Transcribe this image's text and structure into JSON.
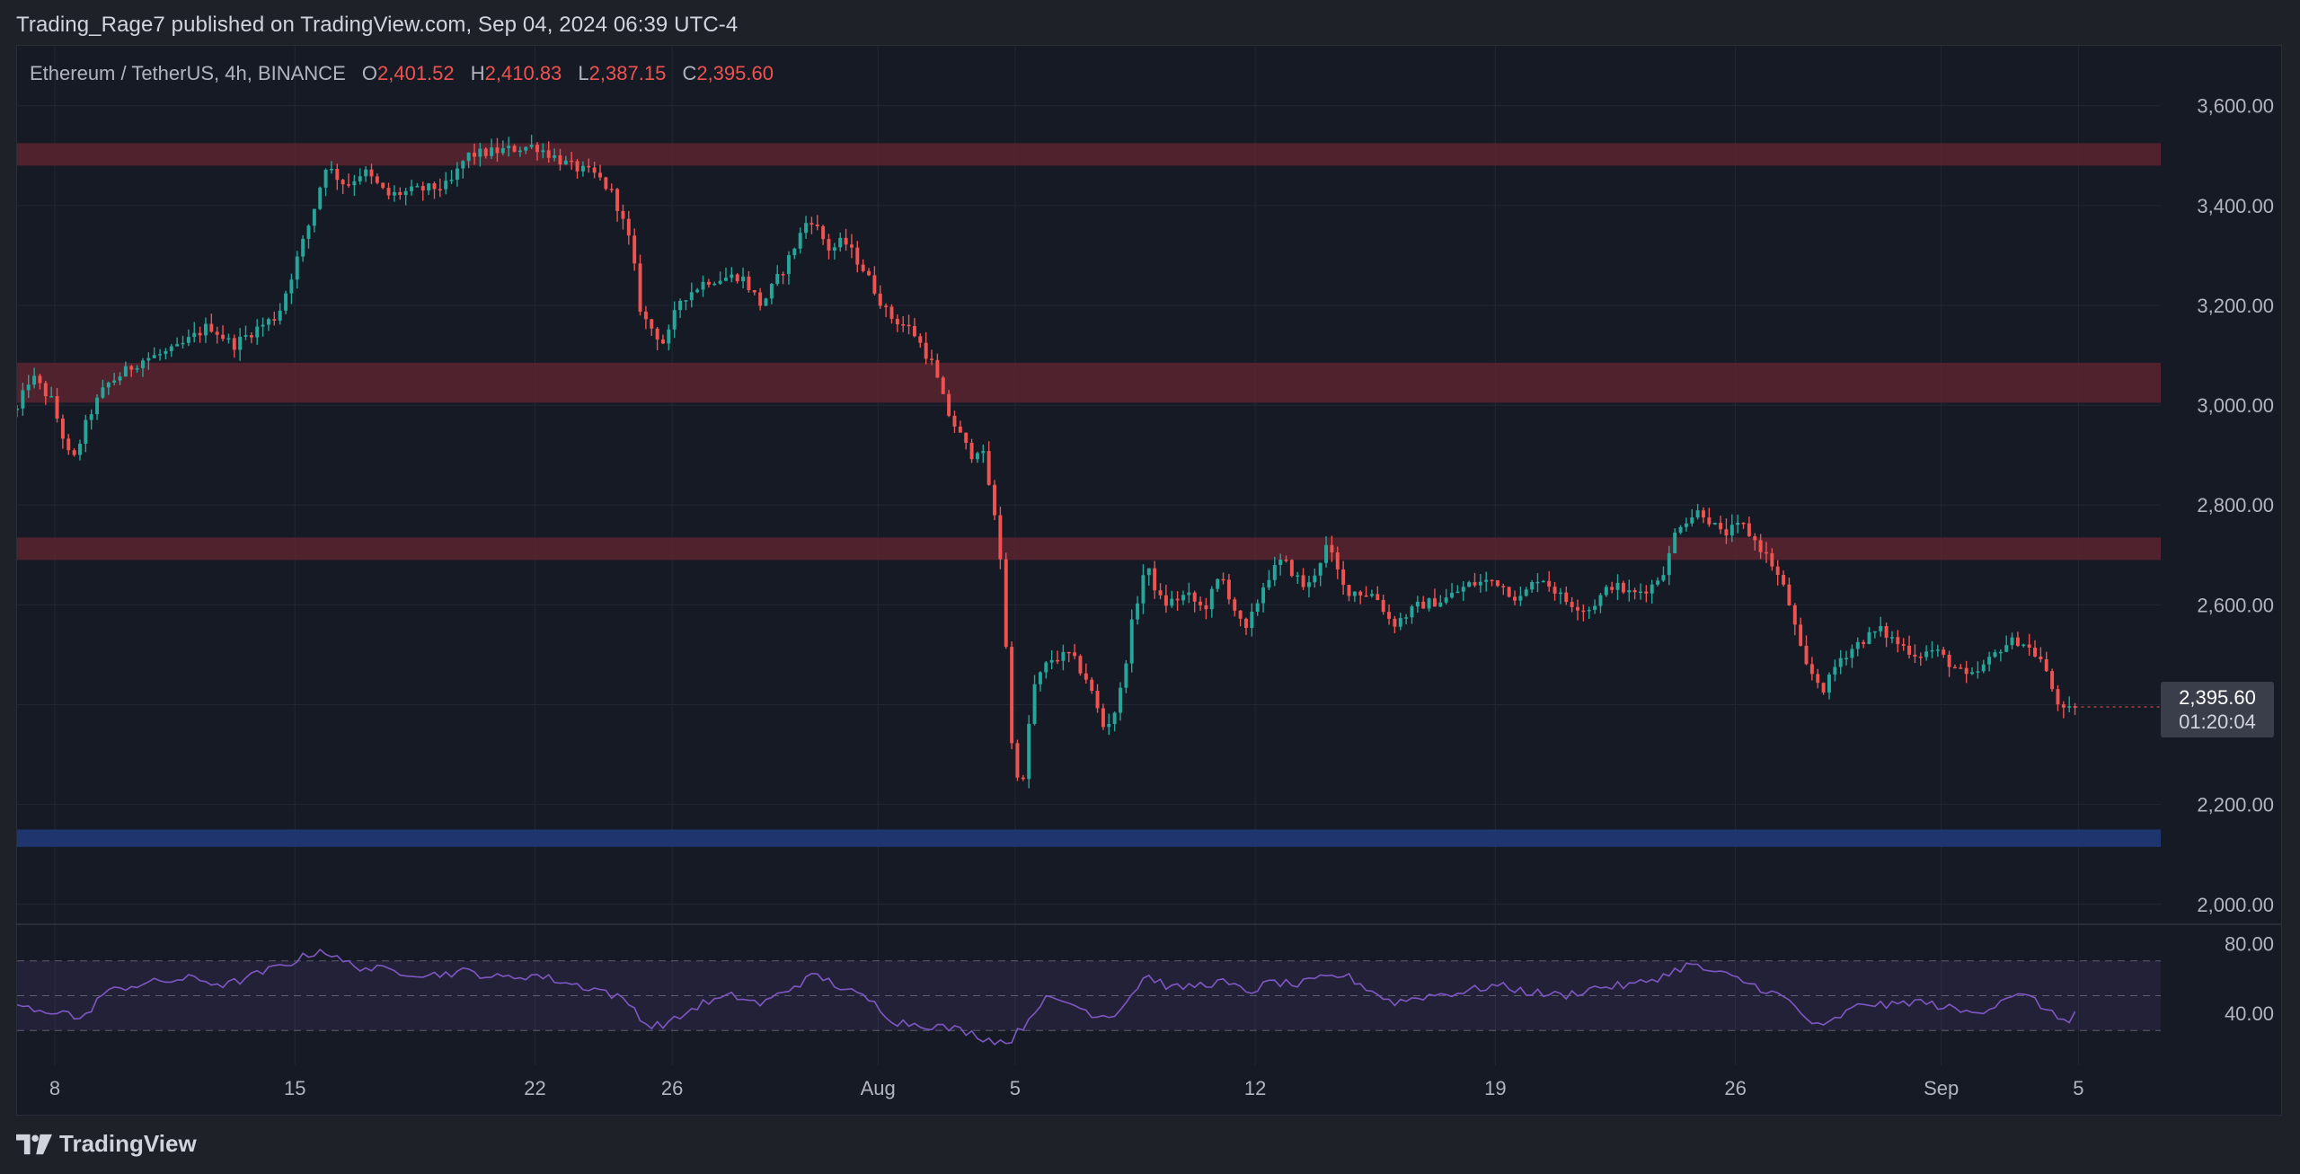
{
  "header": {
    "publisher": "Trading_Rage7 published on TradingView.com, Sep 04, 2024 06:39 UTC-4"
  },
  "legend": {
    "symbol": "Ethereum / TetherUS, 4h, BINANCE",
    "o_label": "O",
    "o_value": "2,401.52",
    "h_label": "H",
    "h_value": "2,410.83",
    "l_label": "L",
    "l_value": "2,387.15",
    "c_label": "C",
    "c_value": "2,395.60"
  },
  "price_badge": {
    "price": "2,395.60",
    "countdown": "01:20:04"
  },
  "footer": {
    "brand": "TradingView"
  },
  "colors": {
    "up": "#26a69a",
    "down": "#ef5350",
    "resistance": "#5a2530",
    "support": "#1f3a75",
    "rsi": "#7e57c2",
    "axis_text": "#b2b5be",
    "grid": "#232733"
  },
  "chart_data": [
    {
      "type": "candlestick",
      "title": "Ethereum / TetherUS, 4h, BINANCE",
      "y_axis_ticks": [
        "3,600.00",
        "3,400.00",
        "3,200.00",
        "3,000.00",
        "2,800.00",
        "2,600.00",
        "2,400.00",
        "2,200.00",
        "2,000.00"
      ],
      "y_tick_values": [
        3600,
        3400,
        3200,
        3000,
        2800,
        2600,
        2400,
        2200,
        2000
      ],
      "ylim": [
        1960,
        3720
      ],
      "x_axis_ticks": [
        "8",
        "15",
        "22",
        "26",
        "Aug",
        "5",
        "12",
        "19",
        "26",
        "Sep",
        "5"
      ],
      "x_tick_days": [
        7,
        14,
        21,
        25,
        31,
        35,
        42,
        49,
        56,
        62,
        66
      ],
      "xlim_days": [
        5.9,
        68.4
      ],
      "zones": [
        {
          "kind": "resistance",
          "low": 3480,
          "high": 3525
        },
        {
          "kind": "resistance",
          "low": 3005,
          "high": 3085
        },
        {
          "kind": "resistance",
          "low": 2690,
          "high": 2735
        },
        {
          "kind": "support",
          "low": 2115,
          "high": 2150
        }
      ],
      "price_path": [
        [
          5.9,
          2990
        ],
        [
          6.3,
          3060
        ],
        [
          6.9,
          3010
        ],
        [
          7.5,
          2880
        ],
        [
          8.0,
          2980
        ],
        [
          8.5,
          3040
        ],
        [
          9.5,
          3090
        ],
        [
          10.5,
          3110
        ],
        [
          11.5,
          3160
        ],
        [
          12.2,
          3120
        ],
        [
          12.8,
          3150
        ],
        [
          13.5,
          3180
        ],
        [
          14.0,
          3280
        ],
        [
          14.5,
          3380
        ],
        [
          14.9,
          3480
        ],
        [
          15.5,
          3440
        ],
        [
          16.0,
          3470
        ],
        [
          16.7,
          3420
        ],
        [
          17.5,
          3430
        ],
        [
          18.5,
          3440
        ],
        [
          19.0,
          3500
        ],
        [
          20.0,
          3510
        ],
        [
          21.0,
          3520
        ],
        [
          21.5,
          3500
        ],
        [
          22.0,
          3480
        ],
        [
          22.8,
          3460
        ],
        [
          23.3,
          3420
        ],
        [
          23.8,
          3320
        ],
        [
          24.1,
          3180
        ],
        [
          24.8,
          3120
        ],
        [
          25.2,
          3210
        ],
        [
          26.0,
          3250
        ],
        [
          27.0,
          3260
        ],
        [
          27.6,
          3200
        ],
        [
          28.3,
          3280
        ],
        [
          29.0,
          3380
        ],
        [
          29.6,
          3310
        ],
        [
          30.0,
          3330
        ],
        [
          30.6,
          3270
        ],
        [
          31.3,
          3180
        ],
        [
          32.0,
          3150
        ],
        [
          32.6,
          3080
        ],
        [
          33.0,
          2990
        ],
        [
          33.7,
          2900
        ],
        [
          34.0,
          2920
        ],
        [
          34.3,
          2820
        ],
        [
          34.6,
          2680
        ],
        [
          34.9,
          2320
        ],
        [
          35.2,
          2220
        ],
        [
          35.5,
          2430
        ],
        [
          36.0,
          2490
        ],
        [
          36.6,
          2500
        ],
        [
          37.1,
          2450
        ],
        [
          37.6,
          2350
        ],
        [
          38.0,
          2400
        ],
        [
          38.4,
          2560
        ],
        [
          38.8,
          2680
        ],
        [
          39.3,
          2600
        ],
        [
          40.0,
          2620
        ],
        [
          40.5,
          2590
        ],
        [
          41.0,
          2660
        ],
        [
          41.7,
          2540
        ],
        [
          42.3,
          2650
        ],
        [
          42.8,
          2690
        ],
        [
          43.5,
          2630
        ],
        [
          44.1,
          2720
        ],
        [
          44.6,
          2630
        ],
        [
          45.5,
          2620
        ],
        [
          46.0,
          2560
        ],
        [
          46.8,
          2600
        ],
        [
          47.5,
          2610
        ],
        [
          48.2,
          2640
        ],
        [
          49.0,
          2650
        ],
        [
          49.7,
          2610
        ],
        [
          50.3,
          2660
        ],
        [
          51.0,
          2610
        ],
        [
          51.7,
          2590
        ],
        [
          52.4,
          2640
        ],
        [
          53.0,
          2620
        ],
        [
          53.6,
          2640
        ],
        [
          54.0,
          2680
        ],
        [
          54.3,
          2760
        ],
        [
          55.0,
          2790
        ],
        [
          55.6,
          2740
        ],
        [
          56.2,
          2760
        ],
        [
          57.0,
          2690
        ],
        [
          57.5,
          2620
        ],
        [
          58.0,
          2480
        ],
        [
          58.6,
          2430
        ],
        [
          59.0,
          2490
        ],
        [
          59.7,
          2530
        ],
        [
          60.2,
          2550
        ],
        [
          60.8,
          2520
        ],
        [
          61.3,
          2500
        ],
        [
          61.8,
          2510
        ],
        [
          62.3,
          2480
        ],
        [
          62.8,
          2450
        ],
        [
          63.3,
          2480
        ],
        [
          63.8,
          2520
        ],
        [
          64.3,
          2530
        ],
        [
          64.9,
          2490
        ],
        [
          65.3,
          2420
        ],
        [
          65.6,
          2380
        ],
        [
          65.9,
          2396
        ]
      ],
      "last_close": 2395.6
    },
    {
      "type": "line",
      "title": "RSI",
      "y_axis_ticks": [
        "80.00",
        "40.00"
      ],
      "y_tick_values": [
        80,
        40
      ],
      "ylim": [
        10,
        90
      ],
      "band": [
        30,
        70
      ],
      "midline": 50,
      "rsi_path": [
        [
          5.9,
          45
        ],
        [
          6.5,
          40
        ],
        [
          7.2,
          42
        ],
        [
          7.8,
          35
        ],
        [
          8.3,
          50
        ],
        [
          9.0,
          55
        ],
        [
          10.0,
          58
        ],
        [
          11.0,
          60
        ],
        [
          12.0,
          56
        ],
        [
          13.0,
          63
        ],
        [
          14.0,
          70
        ],
        [
          14.8,
          77
        ],
        [
          15.3,
          70
        ],
        [
          16.0,
          66
        ],
        [
          17.0,
          64
        ],
        [
          18.0,
          62
        ],
        [
          19.0,
          64
        ],
        [
          20.0,
          60
        ],
        [
          21.0,
          62
        ],
        [
          22.0,
          57
        ],
        [
          23.0,
          53
        ],
        [
          23.8,
          45
        ],
        [
          24.3,
          32
        ],
        [
          25.0,
          35
        ],
        [
          25.8,
          45
        ],
        [
          26.8,
          50
        ],
        [
          27.6,
          45
        ],
        [
          28.5,
          55
        ],
        [
          29.2,
          62
        ],
        [
          30.0,
          54
        ],
        [
          30.8,
          47
        ],
        [
          31.5,
          35
        ],
        [
          32.5,
          33
        ],
        [
          33.5,
          30
        ],
        [
          34.2,
          25
        ],
        [
          34.8,
          23
        ],
        [
          35.3,
          34
        ],
        [
          35.8,
          48
        ],
        [
          36.6,
          46
        ],
        [
          37.2,
          40
        ],
        [
          37.8,
          38
        ],
        [
          38.3,
          48
        ],
        [
          38.8,
          62
        ],
        [
          39.6,
          54
        ],
        [
          40.3,
          56
        ],
        [
          41.0,
          58
        ],
        [
          41.8,
          52
        ],
        [
          42.5,
          58
        ],
        [
          43.2,
          56
        ],
        [
          44.0,
          60
        ],
        [
          44.6,
          62
        ],
        [
          45.3,
          54
        ],
        [
          46.0,
          46
        ],
        [
          47.0,
          50
        ],
        [
          48.0,
          52
        ],
        [
          49.0,
          56
        ],
        [
          50.0,
          52
        ],
        [
          51.0,
          50
        ],
        [
          52.0,
          55
        ],
        [
          53.0,
          56
        ],
        [
          54.0,
          62
        ],
        [
          54.6,
          68
        ],
        [
          55.3,
          64
        ],
        [
          56.0,
          60
        ],
        [
          56.8,
          54
        ],
        [
          57.5,
          48
        ],
        [
          58.0,
          38
        ],
        [
          58.5,
          31
        ],
        [
          59.2,
          40
        ],
        [
          59.8,
          46
        ],
        [
          60.5,
          44
        ],
        [
          61.2,
          47
        ],
        [
          62.0,
          44
        ],
        [
          62.8,
          40
        ],
        [
          63.4,
          43
        ],
        [
          64.0,
          51
        ],
        [
          64.7,
          48
        ],
        [
          65.3,
          38
        ],
        [
          65.7,
          36
        ],
        [
          65.9,
          40
        ]
      ]
    }
  ]
}
